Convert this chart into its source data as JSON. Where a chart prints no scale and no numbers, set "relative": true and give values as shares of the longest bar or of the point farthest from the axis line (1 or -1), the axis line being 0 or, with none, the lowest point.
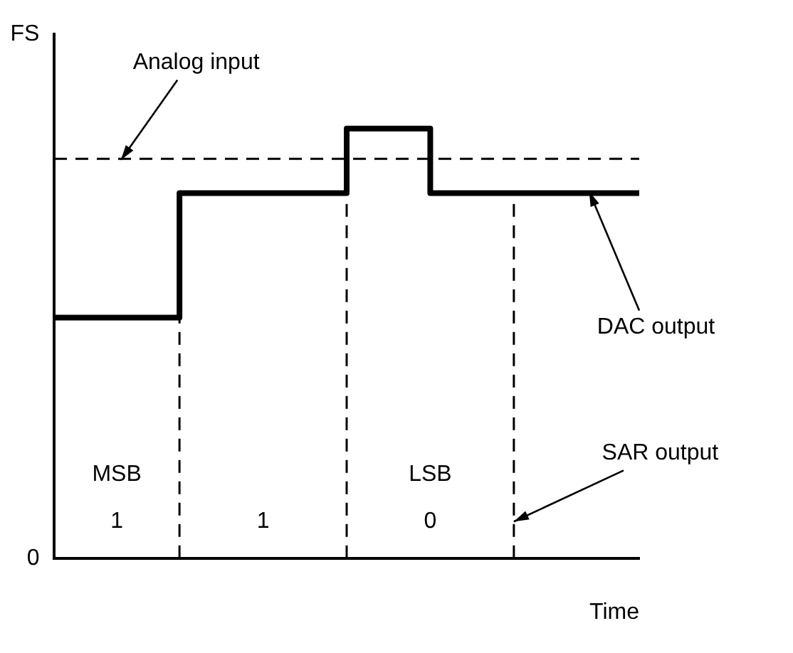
{
  "chart_data": {
    "type": "step",
    "xlabel": "Time",
    "categories": [
      null,
      null,
      null,
      null,
      null,
      null,
      null,
      null
    ],
    "series": [
      {
        "color": "#000000",
        "values": [
          0.56,
          0.56,
          0.85,
          0.85,
          1,
          0.85,
          0.85,
          0.85
        ]
      }
    ],
    "relative": true,
    "grid": false,
    "legend": false,
    "line_style": "solid",
    "marker": "none",
    "ref_lines": [
      {
        "axis": "y",
        "value": 0.93,
        "line_style": "dashed",
        "color": "#000000"
      }
    ],
    "annotations": [
      "Analog input",
      "DAC output",
      "SAR output",
      "MSB",
      "1",
      "1",
      "LSB",
      "0",
      "FS",
      "0"
    ]
  }
}
